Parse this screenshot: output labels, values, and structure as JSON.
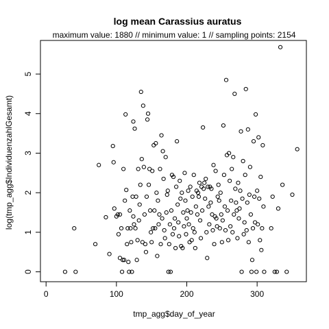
{
  "chart_data": {
    "type": "scatter",
    "title": "log mean Carassius auratus",
    "subtitle": "maximum value: 1880  //  minimum value: 1  // sampling points: 2154",
    "xlabel": "tmp_agg$day_of_year",
    "ylabel": "log(tmp_agg$IndividuenzahlGesamt)",
    "xlim": [
      -8,
      370
    ],
    "ylim": [
      -0.25,
      5.85
    ],
    "xticks": [
      0,
      100,
      200,
      300
    ],
    "yticks": [
      0,
      1,
      2,
      3,
      4,
      5
    ],
    "marker": "open-circle",
    "color": "#000000",
    "points": [
      [
        27,
        0
      ],
      [
        42,
        0
      ],
      [
        40,
        1.1
      ],
      [
        70,
        0.7
      ],
      [
        75,
        2.7
      ],
      [
        85,
        1.38
      ],
      [
        90,
        0.45
      ],
      [
        95,
        3.18
      ],
      [
        96,
        2.77
      ],
      [
        97,
        1.6
      ],
      [
        100,
        1.4
      ],
      [
        102,
        1.45
      ],
      [
        103,
        0.95
      ],
      [
        105,
        1.45
      ],
      [
        105,
        0.35
      ],
      [
        107,
        1.1
      ],
      [
        108,
        0
      ],
      [
        109,
        0.3
      ],
      [
        110,
        2.6
      ],
      [
        111,
        0.3
      ],
      [
        112,
        1.8
      ],
      [
        113,
        3.98
      ],
      [
        114,
        2.07
      ],
      [
        115,
        0.7
      ],
      [
        116,
        1.1
      ],
      [
        117,
        0.25
      ],
      [
        118,
        0
      ],
      [
        119,
        1.55
      ],
      [
        120,
        1.1
      ],
      [
        121,
        0.75
      ],
      [
        122,
        0
      ],
      [
        123,
        1.9
      ],
      [
        124,
        3.8
      ],
      [
        124,
        1.4
      ],
      [
        125,
        1.2
      ],
      [
        126,
        3.62
      ],
      [
        127,
        1.1
      ],
      [
        128,
        1.9
      ],
      [
        129,
        0.3
      ],
      [
        130,
        0.8
      ],
      [
        131,
        2.6
      ],
      [
        132,
        1.3
      ],
      [
        133,
        1.7
      ],
      [
        134,
        2.2
      ],
      [
        135,
        4.55
      ],
      [
        136,
        2.85
      ],
      [
        137,
        0.75
      ],
      [
        138,
        4.2
      ],
      [
        139,
        2.65
      ],
      [
        140,
        1.45
      ],
      [
        141,
        0.7
      ],
      [
        142,
        0.5
      ],
      [
        143,
        1.9
      ],
      [
        144,
        3.85
      ],
      [
        145,
        4.0
      ],
      [
        146,
        2.2
      ],
      [
        147,
        2.6
      ],
      [
        148,
        1.55
      ],
      [
        149,
        1.0
      ],
      [
        150,
        0.75
      ],
      [
        151,
        2.55
      ],
      [
        152,
        1.1
      ],
      [
        153,
        3.2
      ],
      [
        154,
        1.55
      ],
      [
        155,
        1.1
      ],
      [
        156,
        3.25
      ],
      [
        157,
        2.0
      ],
      [
        158,
        0.4
      ],
      [
        159,
        1.8
      ],
      [
        160,
        1.2
      ],
      [
        161,
        1.45
      ],
      [
        162,
        2.6
      ],
      [
        163,
        0.7
      ],
      [
        164,
        3.45
      ],
      [
        165,
        1.35
      ],
      [
        166,
        3.05
      ],
      [
        167,
        2.35
      ],
      [
        168,
        1.05
      ],
      [
        169,
        0.85
      ],
      [
        170,
        2.9
      ],
      [
        171,
        1.5
      ],
      [
        172,
        1.95
      ],
      [
        173,
        2.05
      ],
      [
        174,
        0
      ],
      [
        175,
        0.7
      ],
      [
        176,
        1.2
      ],
      [
        177,
        0
      ],
      [
        178,
        1.55
      ],
      [
        179,
        2.45
      ],
      [
        180,
        0.95
      ],
      [
        181,
        2.4
      ],
      [
        182,
        1.1
      ],
      [
        183,
        1.35
      ],
      [
        184,
        0.6
      ],
      [
        185,
        2.15
      ],
      [
        186,
        3.3
      ],
      [
        187,
        1.7
      ],
      [
        188,
        1.25
      ],
      [
        189,
        0.9
      ],
      [
        190,
        2.3
      ],
      [
        191,
        1.85
      ],
      [
        192,
        0.65
      ],
      [
        193,
        2.0
      ],
      [
        194,
        0.6
      ],
      [
        195,
        1.5
      ],
      [
        196,
        1.15
      ],
      [
        197,
        2.5
      ],
      [
        198,
        1.8
      ],
      [
        199,
        0.95
      ],
      [
        200,
        1.35
      ],
      [
        201,
        1.55
      ],
      [
        202,
        2.05
      ],
      [
        203,
        1.2
      ],
      [
        204,
        0.75
      ],
      [
        205,
        2.15
      ],
      [
        206,
        1.5
      ],
      [
        207,
        0.8
      ],
      [
        208,
        1.9
      ],
      [
        209,
        1.1
      ],
      [
        210,
        2.45
      ],
      [
        211,
        1.0
      ],
      [
        212,
        0.6
      ],
      [
        213,
        1.65
      ],
      [
        214,
        2.05
      ],
      [
        215,
        1.45
      ],
      [
        216,
        2.0
      ],
      [
        217,
        1.9
      ],
      [
        218,
        2.25
      ],
      [
        219,
        1.3
      ],
      [
        220,
        0.85
      ],
      [
        221,
        2.15
      ],
      [
        222,
        1.55
      ],
      [
        223,
        3.65
      ],
      [
        224,
        2.1
      ],
      [
        225,
        2.25
      ],
      [
        226,
        1.85
      ],
      [
        227,
        2.35
      ],
      [
        228,
        1.0
      ],
      [
        229,
        0.35
      ],
      [
        230,
        2.15
      ],
      [
        231,
        1.65
      ],
      [
        232,
        1.2
      ],
      [
        233,
        2.15
      ],
      [
        234,
        1.75
      ],
      [
        235,
        2.1
      ],
      [
        236,
        1.45
      ],
      [
        237,
        1.05
      ],
      [
        238,
        2.7
      ],
      [
        239,
        0.7
      ],
      [
        240,
        1.4
      ],
      [
        241,
        2.55
      ],
      [
        242,
        1.35
      ],
      [
        243,
        1.15
      ],
      [
        244,
        1.9
      ],
      [
        245,
        2.2
      ],
      [
        246,
        1.8
      ],
      [
        247,
        1.1
      ],
      [
        248,
        2.0
      ],
      [
        249,
        1.45
      ],
      [
        250,
        0.75
      ],
      [
        251,
        1.3
      ],
      [
        252,
        3.7
      ],
      [
        253,
        2.45
      ],
      [
        254,
        1.65
      ],
      [
        255,
        1.05
      ],
      [
        256,
        4.85
      ],
      [
        257,
        2.95
      ],
      [
        258,
        1.55
      ],
      [
        259,
        0.8
      ],
      [
        260,
        3.0
      ],
      [
        261,
        2.3
      ],
      [
        262,
        1.15
      ],
      [
        263,
        1.8
      ],
      [
        264,
        2.6
      ],
      [
        265,
        1.0
      ],
      [
        266,
        2.9
      ],
      [
        267,
        1.45
      ],
      [
        268,
        4.5
      ],
      [
        269,
        2.1
      ],
      [
        270,
        1.75
      ],
      [
        271,
        1.55
      ],
      [
        272,
        0.85
      ],
      [
        273,
        2.25
      ],
      [
        274,
        1.35
      ],
      [
        275,
        1.6
      ],
      [
        276,
        2.05
      ],
      [
        277,
        3.55
      ],
      [
        278,
        0
      ],
      [
        279,
        1.85
      ],
      [
        280,
        2.8
      ],
      [
        281,
        0.95
      ],
      [
        282,
        1.25
      ],
      [
        283,
        2.45
      ],
      [
        284,
        4.62
      ],
      [
        285,
        1.05
      ],
      [
        286,
        1.75
      ],
      [
        287,
        3.6
      ],
      [
        288,
        0.75
      ],
      [
        289,
        1.95
      ],
      [
        290,
        2.65
      ],
      [
        291,
        1.45
      ],
      [
        292,
        0
      ],
      [
        293,
        0.3
      ],
      [
        294,
        1.1
      ],
      [
        295,
        3.3
      ],
      [
        296,
        1.9
      ],
      [
        297,
        1.25
      ],
      [
        298,
        3.98
      ],
      [
        299,
        0
      ],
      [
        300,
        2.05
      ],
      [
        301,
        1.2
      ],
      [
        302,
        3.4
      ],
      [
        303,
        1.85
      ],
      [
        304,
        0.8
      ],
      [
        305,
        2.4
      ],
      [
        306,
        0.55
      ],
      [
        307,
        1.1
      ],
      [
        308,
        3.2
      ],
      [
        309,
        1.65
      ],
      [
        310,
        0
      ],
      [
        320,
        1.1
      ],
      [
        322,
        1.9
      ],
      [
        325,
        0
      ],
      [
        328,
        0
      ],
      [
        330,
        1.6
      ],
      [
        333,
        5.68
      ],
      [
        336,
        2.2
      ],
      [
        342,
        0
      ],
      [
        350,
        1.95
      ],
      [
        357,
        3.1
      ]
    ]
  }
}
